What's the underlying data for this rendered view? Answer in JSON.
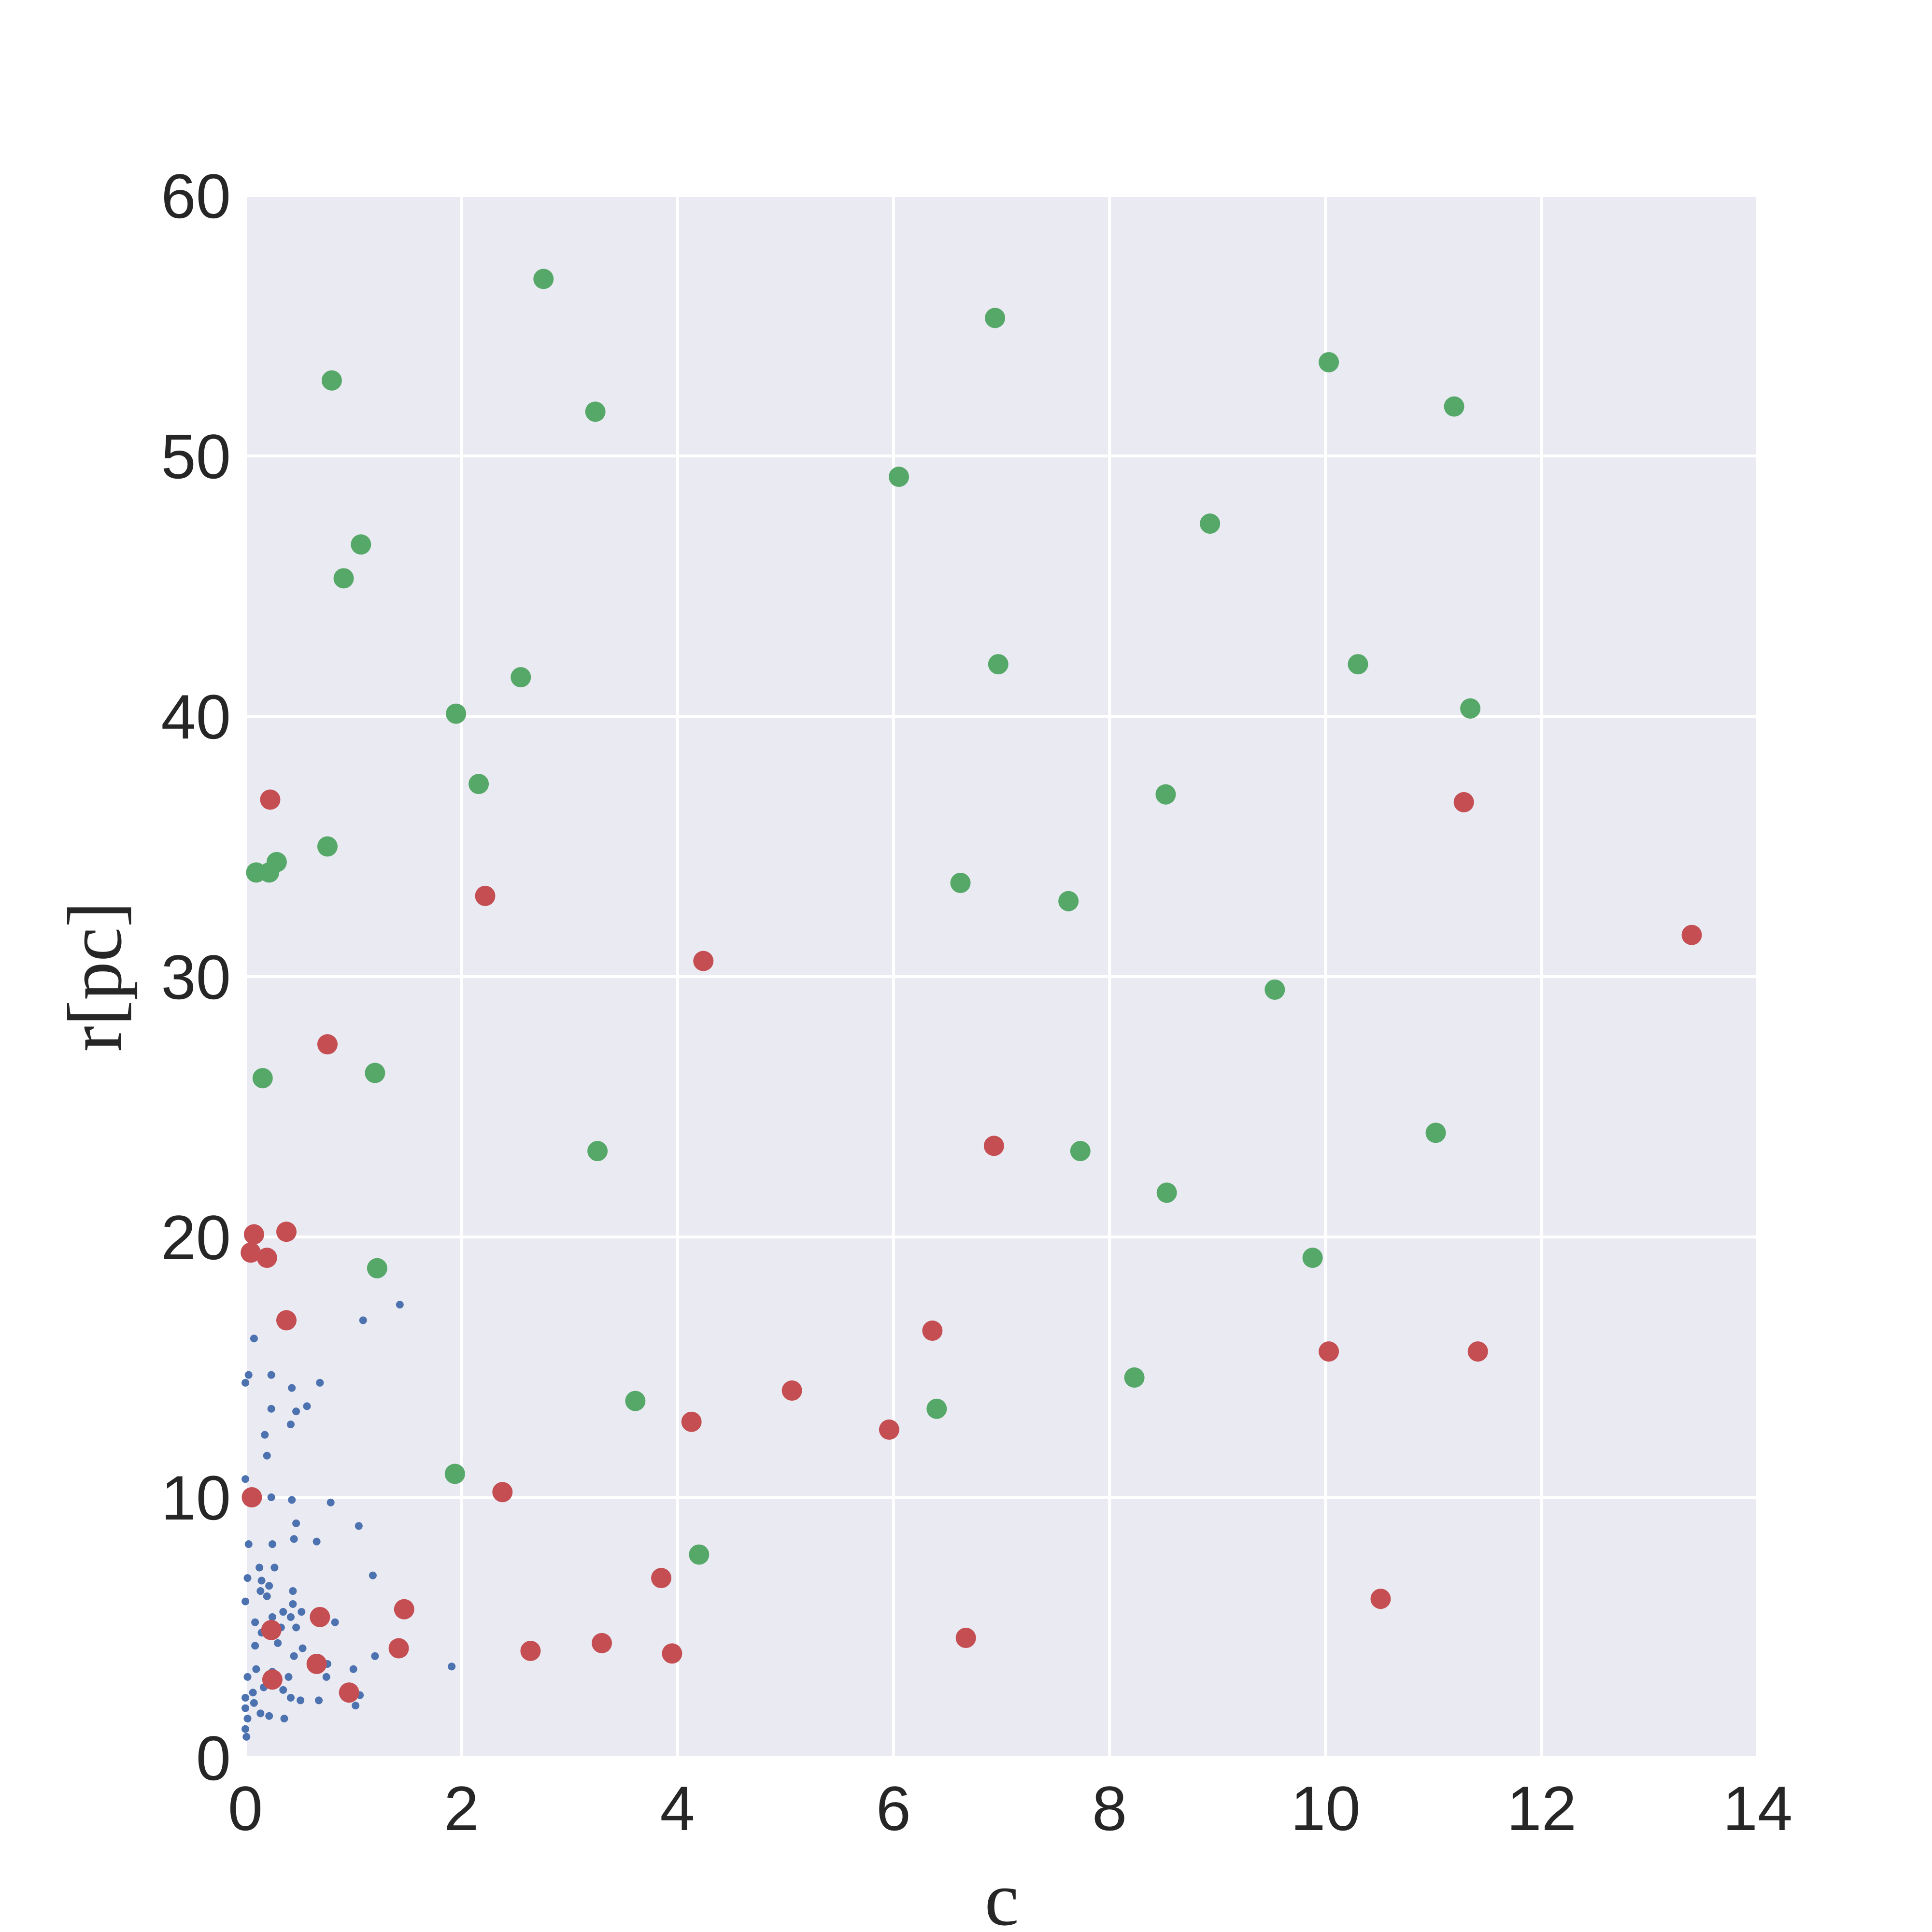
{
  "chart_data": {
    "type": "scatter",
    "xlabel": "c",
    "ylabel": "r[pc]",
    "xlim": [
      0,
      14
    ],
    "ylim": [
      0,
      60
    ],
    "xticks": [
      0,
      2,
      4,
      6,
      8,
      10,
      12,
      14
    ],
    "yticks": [
      0,
      10,
      20,
      30,
      40,
      50,
      60
    ],
    "grid": true,
    "series": [
      {
        "color": "#4c72b0",
        "x": [
          1.09,
          1.43,
          0.08,
          0.03,
          0.24,
          0.69,
          0,
          0.43,
          0.24,
          0.57,
          0.47,
          0.42,
          0.18,
          0.2,
          0,
          0.24,
          0.43,
          0.79,
          0.47,
          1.05,
          0.03,
          0.25,
          0.45,
          0.66,
          0.13,
          0.27,
          1.18,
          0.02,
          0.15,
          0.22,
          0.14,
          0.44,
          0.2,
          0,
          0.44,
          0.35,
          0.52,
          0.42,
          0.83,
          0.09,
          0.25,
          0.33,
          0.47,
          0.15,
          0.3,
          0.53,
          0.09,
          1.2,
          0.76,
          1.91,
          0.45,
          0.1,
          1.0,
          0.25,
          0.02,
          0.4,
          0.75,
          0.17,
          0.35,
          0.07,
          1.06,
          0,
          0.42,
          0.68,
          0.51,
          1.02,
          0.08,
          0,
          0.14,
          0.36,
          0.22,
          0.02,
          0,
          0.01
        ],
        "y": [
          16.8,
          17.4,
          16.1,
          14.7,
          14.7,
          14.4,
          14.4,
          14.2,
          13.4,
          13.5,
          13.3,
          12.8,
          12.4,
          11.6,
          10.7,
          10.0,
          9.9,
          9.8,
          9.0,
          8.9,
          8.2,
          8.2,
          8.4,
          8.3,
          7.3,
          7.3,
          7.0,
          6.9,
          6.8,
          6.6,
          6.4,
          6.4,
          6.2,
          6.0,
          5.9,
          5.6,
          5.6,
          5.4,
          5.2,
          5.2,
          5.4,
          5.0,
          5.0,
          4.8,
          4.4,
          4.2,
          4.3,
          3.9,
          3.6,
          3.5,
          3.9,
          3.4,
          3.4,
          3.3,
          3.1,
          3.1,
          3.1,
          2.7,
          2.6,
          2.5,
          2.4,
          2.3,
          2.3,
          2.2,
          2.2,
          2.0,
          2.1,
          1.9,
          1.7,
          1.5,
          1.6,
          1.5,
          1.1,
          0.8
        ]
      },
      {
        "color": "#55a868",
        "x": [
          0.8,
          2.76,
          6.94,
          10.03,
          11.19,
          3.24,
          6.05,
          8.93,
          1.07,
          0.91,
          2.55,
          6.97,
          10.3,
          11.34,
          1.95,
          2.16,
          8.52,
          0.76,
          0.29,
          0.1,
          0.22,
          6.62,
          7.62,
          9.53,
          0.16,
          1.2,
          3.26,
          7.73,
          11.02,
          8.53,
          1.22,
          9.88,
          3.61,
          8.23,
          6.4,
          1.94,
          4.2
        ],
        "y": [
          52.9,
          56.8,
          55.3,
          53.6,
          51.9,
          51.7,
          49.2,
          47.4,
          46.6,
          45.3,
          41.5,
          42.0,
          42.0,
          40.3,
          40.1,
          37.4,
          37.0,
          35.0,
          34.4,
          34.0,
          34.0,
          33.6,
          32.9,
          29.5,
          26.1,
          26.3,
          23.3,
          23.3,
          24.0,
          21.7,
          18.8,
          19.2,
          13.7,
          14.6,
          13.4,
          10.9,
          7.8
        ]
      },
      {
        "color": "#c44e52",
        "x": [
          0.23,
          11.28,
          2.22,
          13.39,
          4.24,
          0.76,
          6.93,
          0.08,
          0.38,
          0.05,
          0.2,
          0.38,
          6.36,
          10.03,
          11.41,
          5.06,
          4.13,
          5.96,
          0.06,
          2.38,
          3.85,
          10.51,
          1.47,
          0.69,
          0.24,
          6.67,
          1.42,
          2.64,
          3.3,
          3.95,
          0.66,
          0.25,
          0.96
        ],
        "y": [
          36.8,
          36.7,
          33.1,
          31.6,
          30.6,
          27.4,
          23.5,
          20.1,
          20.2,
          19.4,
          19.2,
          16.8,
          16.4,
          15.6,
          15.6,
          14.1,
          12.9,
          12.6,
          10.0,
          10.2,
          6.9,
          6.1,
          5.7,
          5.4,
          4.9,
          4.6,
          4.2,
          4.1,
          4.4,
          4.0,
          3.6,
          3.0,
          2.5
        ]
      }
    ]
  }
}
